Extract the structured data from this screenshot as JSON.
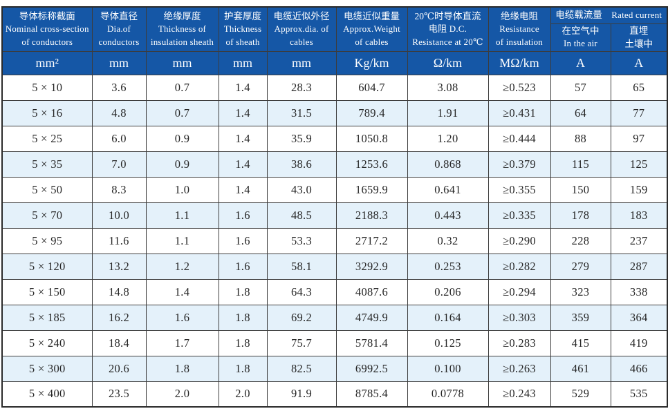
{
  "colors": {
    "header_bg": "#1557a6",
    "header_text": "#ffffff",
    "stripe_bg": "#e4f1fa",
    "border": "#3c3c3c",
    "body_text": "#262626"
  },
  "table": {
    "header": {
      "cols": [
        {
          "zh": "导体标称截面",
          "en": [
            "Nominal cross-section",
            "of conductors"
          ],
          "unit": "mm²"
        },
        {
          "zh": "导体直径",
          "en": [
            "Dia.of",
            "conductors"
          ],
          "unit": "mm"
        },
        {
          "zh": "绝缘厚度",
          "en": [
            "Thickness of",
            "insulation sheath"
          ],
          "unit": "mm"
        },
        {
          "zh": "护套厚度",
          "en": [
            "Thickness",
            "of sheath"
          ],
          "unit": "mm"
        },
        {
          "zh": "电缆近似外径",
          "en": [
            "Approx.dia. of",
            "cables"
          ],
          "unit": "mm"
        },
        {
          "zh": "电缆近似重量",
          "en": [
            "Approx.Weight",
            "of cables"
          ],
          "unit": "Kg/km"
        },
        {
          "zh": "20℃时导体直流",
          "en": [
            "电阻 D.C.",
            "Resistance at 20℃"
          ],
          "unit": "Ω/km"
        },
        {
          "zh": "绝缘电阻",
          "en": [
            "Resistance",
            "of insulation"
          ],
          "unit": "MΩ/km"
        }
      ],
      "current_group": {
        "zh": "电缆载流量",
        "en": "Rated current"
      },
      "air": {
        "zh": "在空气中",
        "en": "In the air",
        "unit": "A"
      },
      "buried": {
        "zh": "直埋",
        "zh2": "土壤中",
        "unit": "A"
      }
    },
    "rows": [
      [
        "5 × 10",
        "3.6",
        "0.7",
        "1.4",
        "28.3",
        "604.7",
        "3.08",
        "≥0.523",
        "57",
        "65"
      ],
      [
        "5 × 16",
        "4.8",
        "0.7",
        "1.4",
        "31.5",
        "789.4",
        "1.91",
        "≥0.431",
        "64",
        "77"
      ],
      [
        "5 × 25",
        "6.0",
        "0.9",
        "1.4",
        "35.9",
        "1050.8",
        "1.20",
        "≥0.444",
        "88",
        "97"
      ],
      [
        "5 × 35",
        "7.0",
        "0.9",
        "1.4",
        "38.6",
        "1253.6",
        "0.868",
        "≥0.379",
        "115",
        "125"
      ],
      [
        "5 × 50",
        "8.3",
        "1.0",
        "1.4",
        "43.0",
        "1659.9",
        "0.641",
        "≥0.355",
        "150",
        "159"
      ],
      [
        "5 × 70",
        "10.0",
        "1.1",
        "1.6",
        "48.5",
        "2188.3",
        "0.443",
        "≥0.335",
        "178",
        "183"
      ],
      [
        "5 × 95",
        "11.6",
        "1.1",
        "1.6",
        "53.3",
        "2717.2",
        "0.32",
        "≥0.290",
        "228",
        "237"
      ],
      [
        "5 × 120",
        "13.2",
        "1.2",
        "1.6",
        "58.1",
        "3292.9",
        "0.253",
        "≥0.282",
        "279",
        "287"
      ],
      [
        "5 × 150",
        "14.8",
        "1.4",
        "1.8",
        "64.3",
        "4087.6",
        "0.206",
        "≥0.294",
        "323",
        "338"
      ],
      [
        "5 × 185",
        "16.2",
        "1.6",
        "1.8",
        "69.2",
        "4749.9",
        "0.164",
        "≥0.303",
        "359",
        "364"
      ],
      [
        "5 × 240",
        "18.4",
        "1.7",
        "1.8",
        "75.7",
        "5781.4",
        "0.125",
        "≥0.283",
        "415",
        "419"
      ],
      [
        "5 × 300",
        "20.6",
        "1.8",
        "1.8",
        "82.5",
        "6992.5",
        "0.100",
        "≥0.263",
        "461",
        "466"
      ],
      [
        "5 × 400",
        "23.5",
        "2.0",
        "2.0",
        "91.9",
        "8785.4",
        "0.0778",
        "≥0.243",
        "529",
        "535"
      ]
    ]
  }
}
